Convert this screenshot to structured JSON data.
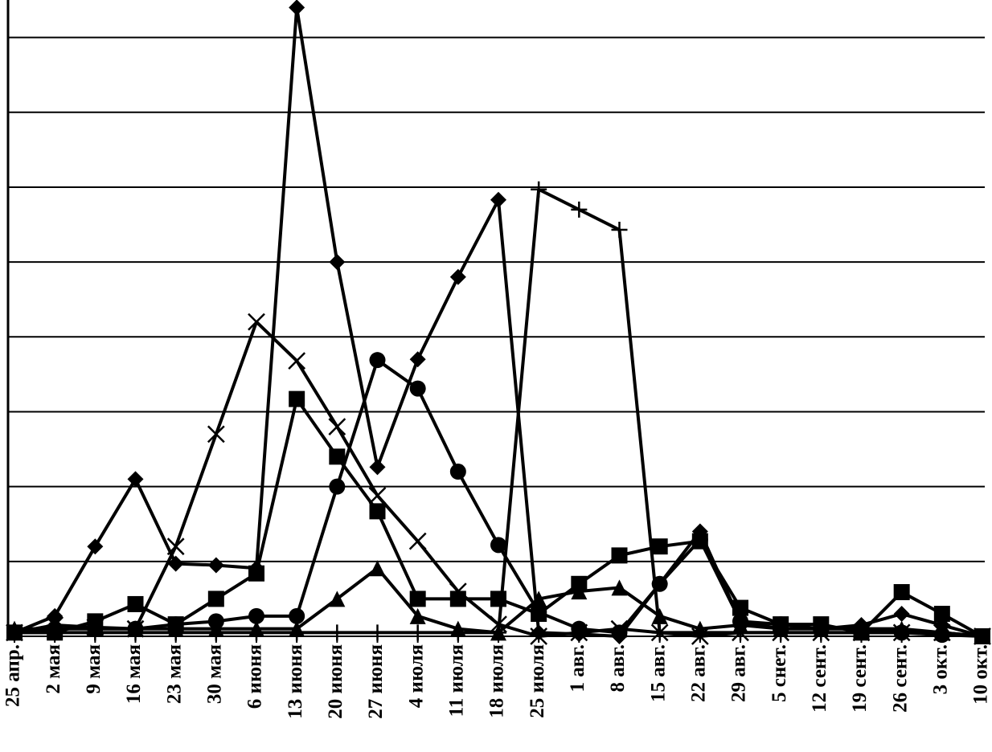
{
  "chart_data": {
    "type": "line",
    "categories": [
      "25 апр.",
      "2 мая",
      "9 мая",
      "16 мая",
      "23 мая",
      "30 мая",
      "6 июня",
      "13 июня",
      "20 июня",
      "27 июня",
      "4 июля",
      "11 июля",
      "18 июля",
      "25 июля",
      "1 авг.",
      "8 авг.",
      "15 авг.",
      "22 авг.",
      "29 авг.",
      "5 снет.",
      "12 сент.",
      "19 сент.",
      "26 сент.",
      "3 окт.",
      "10 окт."
    ],
    "series": [
      {
        "color": "#000000",
        "marker": "diamond",
        "values": [
          0.05,
          0.27,
          1.2,
          2.1,
          0.97,
          0.95,
          0.91,
          8.4,
          5,
          2.26,
          3.7,
          4.8,
          5.83,
          0.05,
          0.03,
          0,
          0.7,
          1.4,
          0.2,
          0.1,
          0.1,
          0.15,
          0.3,
          0.15,
          0
        ]
      },
      {
        "color": "#000000",
        "marker": "square",
        "values": [
          0.05,
          0.05,
          0.2,
          0.43,
          0.16,
          0.5,
          0.84,
          3.17,
          2.4,
          1.67,
          0.5,
          0.5,
          0.5,
          0.3,
          0.7,
          1.08,
          1.2,
          1.27,
          0.38,
          0.16,
          0.16,
          0.05,
          0.59,
          0.3,
          0
        ]
      },
      {
        "color": "#000000",
        "marker": "x",
        "values": [
          0.05,
          0.15,
          0.12,
          0.1,
          1.2,
          2.7,
          4.2,
          3.68,
          2.8,
          1.88,
          1.27,
          0.6,
          0.16,
          0,
          0.05,
          0.1,
          0.05,
          0,
          0.05,
          0.05,
          0.05,
          0.05,
          0.05,
          0.05,
          0
        ]
      },
      {
        "color": "#000000",
        "marker": "plus",
        "values": [
          0.05,
          0.05,
          0.05,
          0.05,
          0.05,
          0.05,
          0.05,
          0.05,
          0.05,
          0.05,
          0.05,
          0.05,
          0.05,
          5.97,
          5.7,
          5.43,
          0.05,
          0.05,
          0.05,
          0.05,
          0.05,
          0.05,
          0.05,
          0.05,
          0
        ]
      },
      {
        "color": "#000000",
        "marker": "circle",
        "values": [
          0.05,
          0.1,
          0.1,
          0.1,
          0.16,
          0.2,
          0.27,
          0.27,
          2,
          3.69,
          3.31,
          2.2,
          1.22,
          0.32,
          0.1,
          0.05,
          0.7,
          1.29,
          0.2,
          0.16,
          0.1,
          0.1,
          0.05,
          0.02,
          0
        ]
      },
      {
        "color": "#000000",
        "marker": "triangle",
        "values": [
          0.1,
          0.1,
          0.1,
          0.1,
          0.1,
          0.1,
          0.1,
          0.1,
          0.5,
          0.91,
          0.27,
          0.1,
          0.05,
          0.5,
          0.6,
          0.65,
          0.27,
          0.1,
          0.15,
          0.1,
          0.1,
          0.1,
          0.1,
          0.05,
          0
        ]
      }
    ],
    "ylim": [
      0,
      8.5
    ],
    "yticks": [
      0,
      1,
      2,
      3,
      4,
      5,
      6,
      7,
      8
    ],
    "grid": true
  }
}
